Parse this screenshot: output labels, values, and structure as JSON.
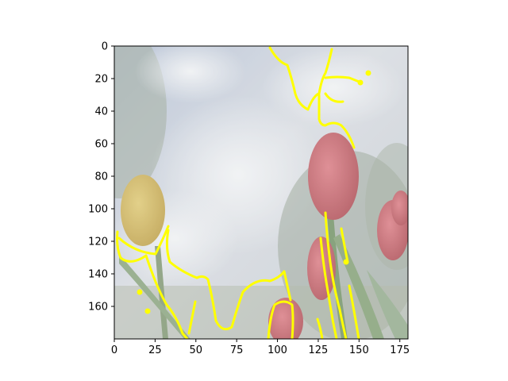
{
  "chart_data": {
    "type": "image",
    "xlim": [
      0,
      180
    ],
    "ylim": [
      180,
      0
    ],
    "x_ticks": [
      "0",
      "25",
      "50",
      "75",
      "100",
      "125",
      "150",
      "175"
    ],
    "y_ticks": [
      "0",
      "20",
      "40",
      "60",
      "80",
      "100",
      "120",
      "140",
      "160"
    ],
    "grid": false,
    "overlay_color": "#ffff00",
    "image_subjects": [
      "sky-with-clouds",
      "yellow-tulip",
      "red-tulips",
      "green-stems-and-leaves"
    ]
  }
}
